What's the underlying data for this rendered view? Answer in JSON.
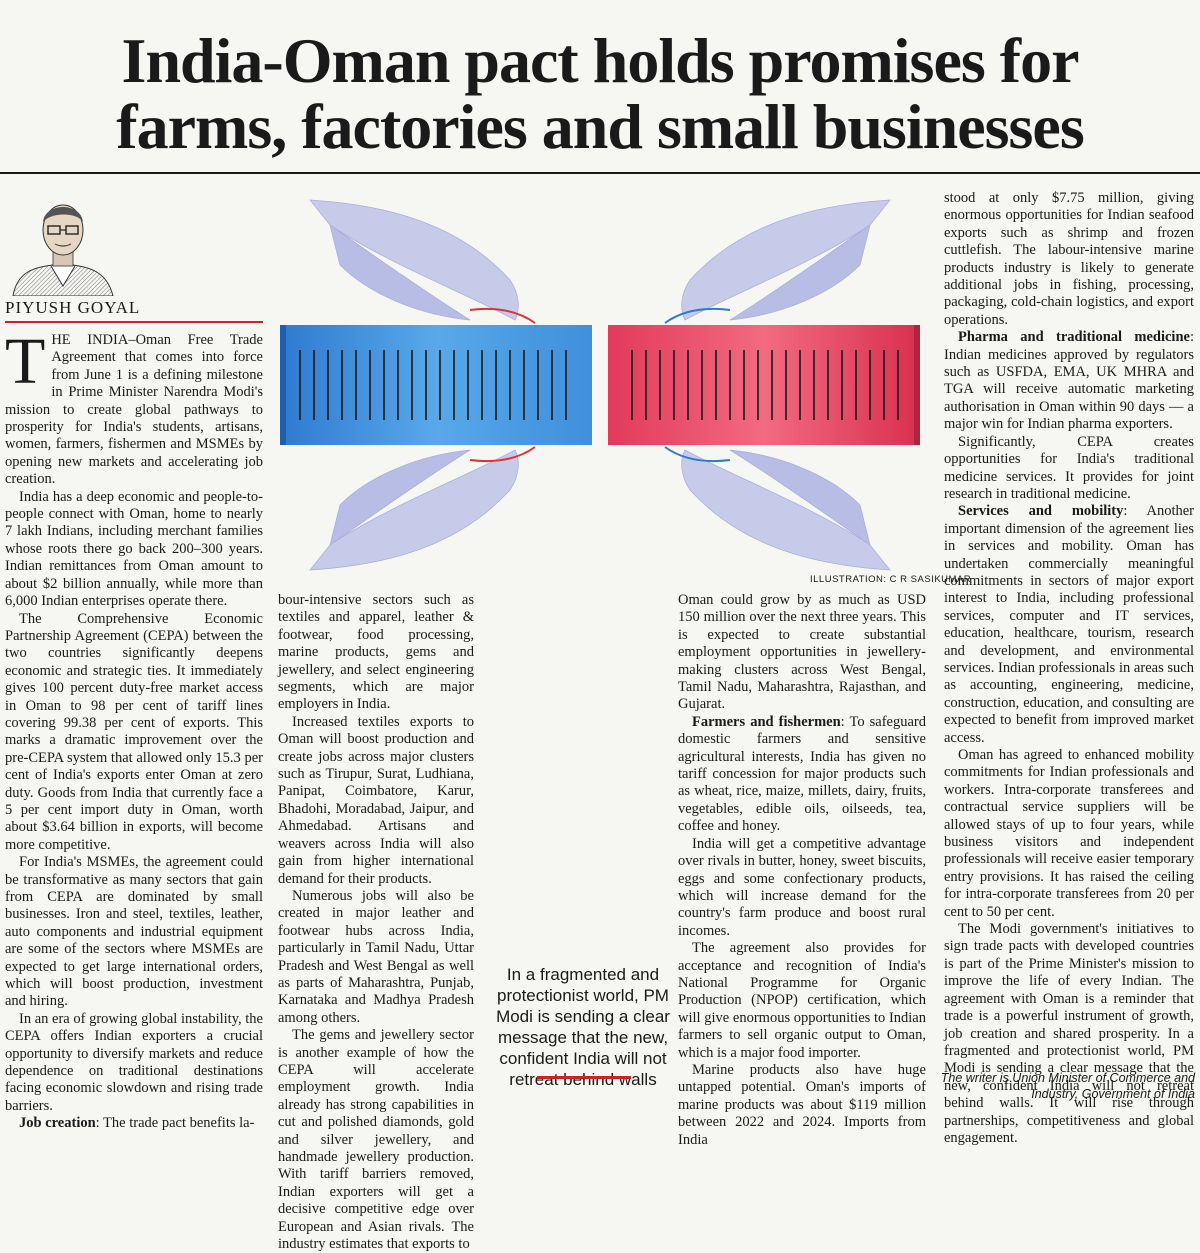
{
  "headline": {
    "line1": "India-Oman pact holds promises for",
    "line2": "farms, factories and small businesses"
  },
  "byline": "PIYUSH GOYAL",
  "credit": "ILLUSTRATION: C R SASIKUMAR",
  "pull_quote": "In a fragmented and protectionist world, PM Modi is sending a clear message that the new, confident India will not retreat behind walls",
  "footnote": "The writer is Union Minister of Commerce and Industry, Government of India",
  "col1": {
    "dropcap": "T",
    "intro": "HE INDIA–Oman Free Trade Agreement that comes into force from June 1 is a defining milestone in Prime Minister Narendra Modi's mission to create global pathways to prosperity for India's students, artisans, women, farmers, fishermen and MSMEs by opening new markets and accelerating job creation.",
    "p2": "India has a deep economic and people-to-people connect with Oman, home to nearly 7 lakh Indians, including merchant families whose roots there go back 200–300 years. Indian remittances from Oman amount to about $2 billion annually, while more than 6,000 Indian enterprises operate there.",
    "p3": "The Comprehensive Economic Partnership Agreement (CEPA) between the two countries significantly deepens economic and strategic ties. It immediately gives 100 percent duty-free market access in Oman to 98 per cent of tariff lines covering 99.38 per cent of exports. This marks a dramatic improvement over the pre-CEPA system that allowed only 15.3 per cent of India's exports enter Oman at zero duty. Goods from India that currently face a 5 per cent import duty in Oman, worth about $3.64 billion in exports, will become more competitive.",
    "p4": "For India's MSMEs, the agreement could be transformative as many sectors that gain from CEPA are dominated by small businesses. Iron and steel, textiles, leather, auto components and industrial equipment are some of the sectors where MSMEs are expected to get large international orders, which will boost production, investment and hiring.",
    "p5": "In an era of growing global instability, the CEPA offers Indian exporters a crucial opportunity to diversify markets and reduce dependence on traditional destinations facing economic slowdown and rising trade barriers.",
    "p6_head": "Job creation",
    "p6": ": The trade pact benefits la-"
  },
  "col2": {
    "p1": "bour-intensive sectors such as textiles and apparel, leather & footwear, food processing, marine products, gems and jewellery, and select engineering segments, which are major employers in India.",
    "p2": "Increased textiles exports to Oman will boost production and create jobs across major clusters such as Tirupur, Surat, Ludhiana, Panipat, Coimbatore, Karur, Bhadohi, Moradabad, Jaipur, and Ahmedabad. Artisans and weavers across India will also gain from higher international demand for their products.",
    "p3": "Numerous jobs will also be created in major leather and footwear hubs across India, particularly in Tamil Nadu, Uttar Pradesh and West Bengal as well as parts of Maharashtra, Punjab, Karnataka and Madhya Pradesh among others.",
    "p4": "The gems and jewellery sector is another example of how the CEPA will accelerate employment growth. India already has strong capabilities in cut and polished diamonds, gold and silver jewellery, and handmade jewellery production. With tariff barriers removed, Indian exporters will get a decisive competitive edge over European and Asian rivals. The industry estimates that exports to"
  },
  "col3": {
    "p1": "Oman could grow by as much as USD 150 million over the next three years. This is expected to create substantial employment opportunities in jewellery-making clusters across West Bengal, Tamil Nadu, Maharashtra, Rajasthan, and Gujarat.",
    "p2_head": "Farmers and fishermen",
    "p2": ": To safeguard domestic farmers and sensitive agricultural interests, India has given no tariff concession for major products such as wheat, rice, maize, millets, dairy, fruits, vegetables, edible oils, oilseeds, tea, coffee and honey.",
    "p3": "India will get a competitive advantage over rivals in butter, honey, sweet biscuits, eggs and some confectionary products, which will increase demand for the country's farm produce and boost rural incomes.",
    "p4": "The agreement also provides for acceptance and recognition of India's National Programme for Organic Production (NPOP) certification, which will give enormous opportunities to Indian farmers to sell organic output to Oman, which is a major food importer.",
    "p5": "Marine products also have huge untapped potential. Oman's imports of marine products was about $119 million between 2022 and 2024. Imports from India"
  },
  "col4": {
    "p1": "stood at only $7.75 million, giving enormous opportunities for Indian seafood exports such as shrimp and frozen cuttlefish. The labour-intensive marine products industry is likely to generate additional jobs in fishing, processing, packaging, cold-chain logistics, and export operations.",
    "p2_head": "Pharma and traditional medicine",
    "p2": ": Indian medicines approved by regulators such as USFDA, EMA, UK MHRA and TGA will receive automatic marketing authorisation in Oman within 90 days — a major win for Indian pharma exporters.",
    "p3": "Significantly, CEPA creates opportunities for India's traditional medicine services. It provides for joint research in traditional medicine.",
    "p4_head": "Services and mobility",
    "p4": ": Another important dimension of the agreement lies in services and mobility. Oman has undertaken commercially meaningful commitments in sectors of major export interest to India, including professional services, computer and IT services, education, healthcare, tourism, research and development, and environmental services. Indian professionals in areas such as accounting, engineering, medicine, construction, education, and consulting are expected to benefit from improved market access.",
    "p5": "Oman has agreed to enhanced mobility commitments for Indian professionals and workers. Intra-corporate transferees and contractual service suppliers will be allowed stays of up to four years, while business visitors and independent professionals will receive easier temporary entry provisions. It has raised the ceiling for intra-corporate transferees from 20 per cent to 50 per cent.",
    "p6": "The Modi government's initiatives to sign trade pacts with developed countries is part of the Prime Minister's mission to improve the life of every Indian. The agreement with Oman is a reminder that trade is a powerful instrument of growth, job creation and shared prosperity. In a fragmented and protectionist world, PM Modi is sending a clear message that the new, confident India will not retreat behind walls. It will rise through partnerships, competitiveness and global engagement."
  }
}
